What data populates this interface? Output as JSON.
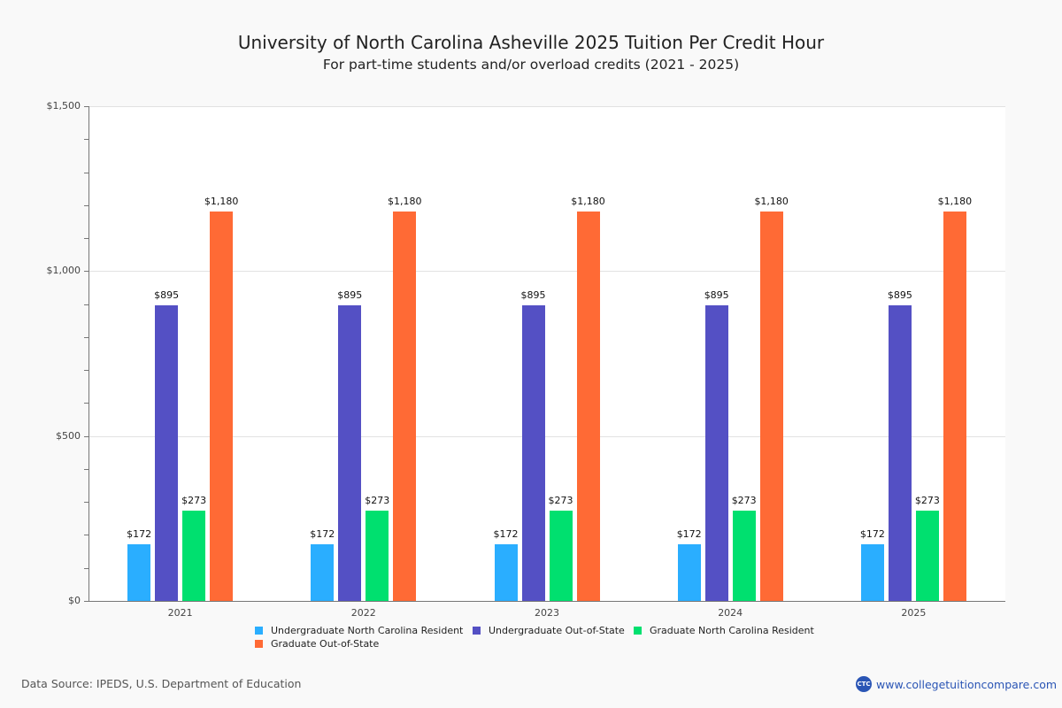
{
  "header": {
    "title": "University of North Carolina Asheville 2025 Tuition Per Credit Hour",
    "subtitle": "For part-time students and/or overload credits (2021 - 2025)"
  },
  "y_axis": {
    "ticks": [
      "$0",
      "$500",
      "$1,000",
      "$1,500"
    ]
  },
  "legend": {
    "items": [
      {
        "label": "Undergraduate North Carolina Resident",
        "color": "#2aaeff"
      },
      {
        "label": "Undergraduate Out-of-State",
        "color": "#5450c4"
      },
      {
        "label": "Graduate North Carolina Resident",
        "color": "#00e06f"
      },
      {
        "label": "Graduate Out-of-State",
        "color": "#ff6a35"
      }
    ]
  },
  "groups": [
    {
      "year": "2021",
      "labels": [
        "$172",
        "$895",
        "$273",
        "$1,180"
      ]
    },
    {
      "year": "2022",
      "labels": [
        "$172",
        "$895",
        "$273",
        "$1,180"
      ]
    },
    {
      "year": "2023",
      "labels": [
        "$172",
        "$895",
        "$273",
        "$1,180"
      ]
    },
    {
      "year": "2024",
      "labels": [
        "$172",
        "$895",
        "$273",
        "$1,180"
      ]
    },
    {
      "year": "2025",
      "labels": [
        "$172",
        "$895",
        "$273",
        "$1,180"
      ]
    }
  ],
  "footer": {
    "source": "Data Source: IPEDS, U.S. Department of Education",
    "logo_text": "CTC",
    "site": "www.collegetuitioncompare.com"
  },
  "chart_data": {
    "type": "bar",
    "title": "University of North Carolina Asheville 2025 Tuition Per Credit Hour",
    "subtitle": "For part-time students and/or overload credits (2021 - 2025)",
    "categories": [
      "2021",
      "2022",
      "2023",
      "2024",
      "2025"
    ],
    "series": [
      {
        "name": "Undergraduate North Carolina Resident",
        "color": "#2aaeff",
        "values": [
          172,
          172,
          172,
          172,
          172
        ]
      },
      {
        "name": "Undergraduate Out-of-State",
        "color": "#5450c4",
        "values": [
          895,
          895,
          895,
          895,
          895
        ]
      },
      {
        "name": "Graduate North Carolina Resident",
        "color": "#00e06f",
        "values": [
          273,
          273,
          273,
          273,
          273
        ]
      },
      {
        "name": "Graduate Out-of-State",
        "color": "#ff6a35",
        "values": [
          1180,
          1180,
          1180,
          1180,
          1180
        ]
      }
    ],
    "xlabel": "",
    "ylabel": "",
    "ylim": [
      0,
      1500
    ],
    "yticks": [
      0,
      500,
      1000,
      1500
    ],
    "grid": true,
    "legend_position": "bottom"
  }
}
